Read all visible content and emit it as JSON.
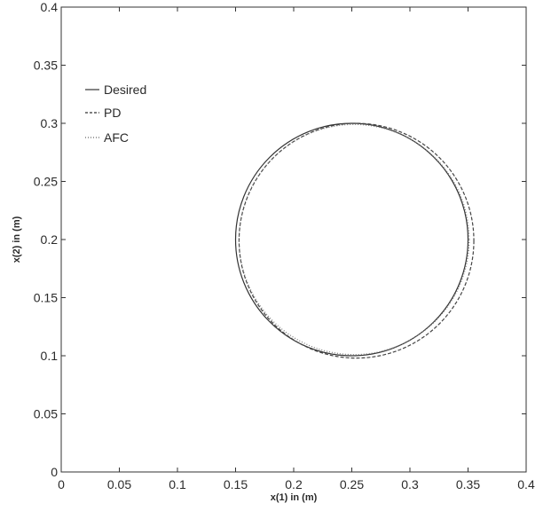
{
  "chart_data": {
    "type": "line",
    "xlabel": "x(1) in (m)",
    "ylabel": "x(2) in (m)",
    "xlim": [
      0,
      0.4
    ],
    "ylim": [
      0,
      0.4
    ],
    "x_ticks": [
      0,
      0.05,
      0.1,
      0.15,
      0.2,
      0.25,
      0.3,
      0.35,
      0.4
    ],
    "x_tick_labels": [
      "0",
      "0.05",
      "0.1",
      "0.15",
      "0.2",
      "0.25",
      "0.3",
      "0.35",
      "0.4"
    ],
    "y_ticks": [
      0,
      0.05,
      0.1,
      0.15,
      0.2,
      0.25,
      0.3,
      0.35,
      0.4
    ],
    "y_tick_labels": [
      "0",
      "0.05",
      "0.1",
      "0.15",
      "0.2",
      "0.25",
      "0.3",
      "0.35",
      "0.4"
    ],
    "grid": false,
    "legend_position": "top-left",
    "series": [
      {
        "name": "Desired",
        "style": "solid",
        "center": [
          0.25,
          0.2
        ],
        "radius": 0.1
      },
      {
        "name": "PD",
        "style": "dashed",
        "center": [
          0.254,
          0.199
        ],
        "radius": 0.101
      },
      {
        "name": "AFC",
        "style": "dotted",
        "center": [
          0.252,
          0.2
        ],
        "radius": 0.099
      }
    ]
  }
}
